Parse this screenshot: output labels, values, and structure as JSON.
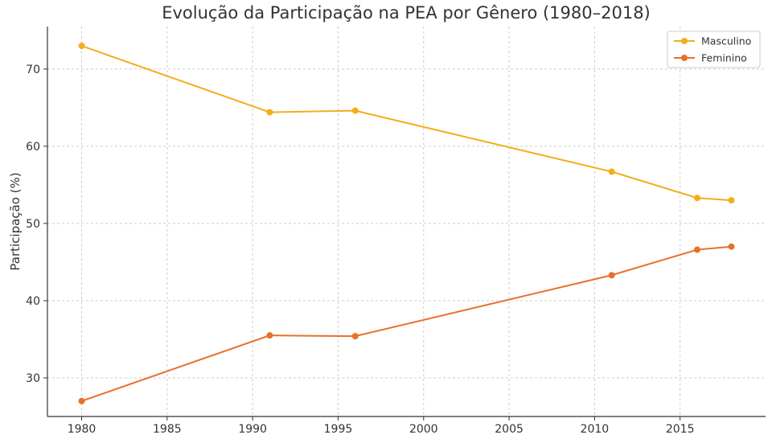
{
  "chart_data": {
    "type": "line",
    "title": "Evolução da Participação na PEA por Gênero (1980–2018)",
    "xlabel": "",
    "ylabel": "Participação (%)",
    "x": [
      1980,
      1991,
      1996,
      2011,
      2016,
      2018
    ],
    "xlim": [
      1978,
      2020
    ],
    "ylim": [
      25,
      75.5
    ],
    "xticks": [
      1980,
      1985,
      1990,
      1995,
      2000,
      2005,
      2010,
      2015
    ],
    "yticks": [
      30,
      40,
      50,
      60,
      70
    ],
    "grid": true,
    "legend_position": "top-right",
    "series": [
      {
        "name": "Masculino",
        "color": "#F2AE1C",
        "values": [
          73.0,
          64.4,
          64.6,
          56.7,
          53.3,
          53.0
        ]
      },
      {
        "name": "Feminino",
        "color": "#E8702A",
        "values": [
          27.0,
          35.5,
          35.4,
          43.3,
          46.6,
          47.0
        ]
      }
    ]
  }
}
